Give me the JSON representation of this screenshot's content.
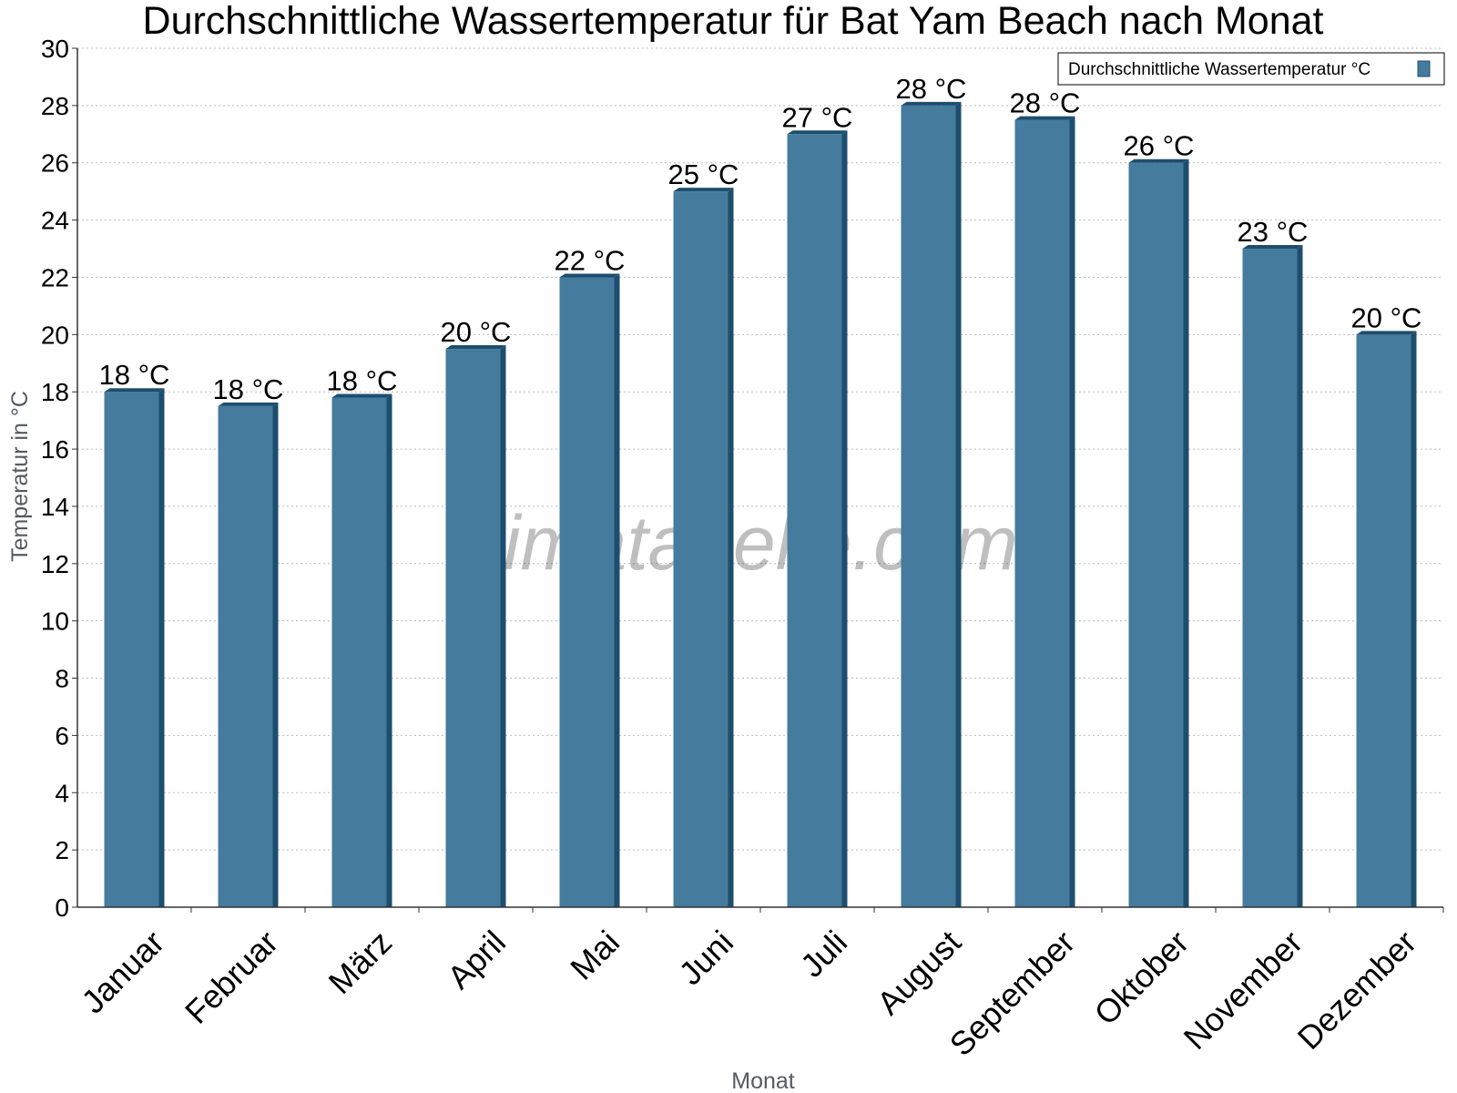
{
  "chart_data": {
    "type": "bar",
    "title": "Durchschnittliche Wassertemperatur für Bat Yam Beach nach Monat",
    "xlabel": "Monat",
    "ylabel": "Temperatur in °C",
    "ylim": [
      0,
      30
    ],
    "yticks": [
      0,
      2,
      4,
      6,
      8,
      10,
      12,
      14,
      16,
      18,
      20,
      22,
      24,
      26,
      28,
      30
    ],
    "grid": true,
    "legend_position": "top-right",
    "categories": [
      "Januar",
      "Februar",
      "März",
      "April",
      "Mai",
      "Juni",
      "Juli",
      "August",
      "September",
      "Oktober",
      "November",
      "Dezember"
    ],
    "series": [
      {
        "name": "Durchschnittliche Wassertemperatur °C",
        "values": [
          18,
          17.5,
          17.8,
          19.5,
          22,
          25,
          27,
          28,
          27.5,
          26,
          23,
          20
        ],
        "labels": [
          "18 °C",
          "18 °C",
          "18 °C",
          "20 °C",
          "22 °C",
          "25 °C",
          "27 °C",
          "28 °C",
          "28 °C",
          "26 °C",
          "23 °C",
          "20 °C"
        ],
        "color": "#457b9d",
        "shade_color": "#1d4e6e"
      }
    ],
    "watermark": "klimatabelle.com"
  }
}
